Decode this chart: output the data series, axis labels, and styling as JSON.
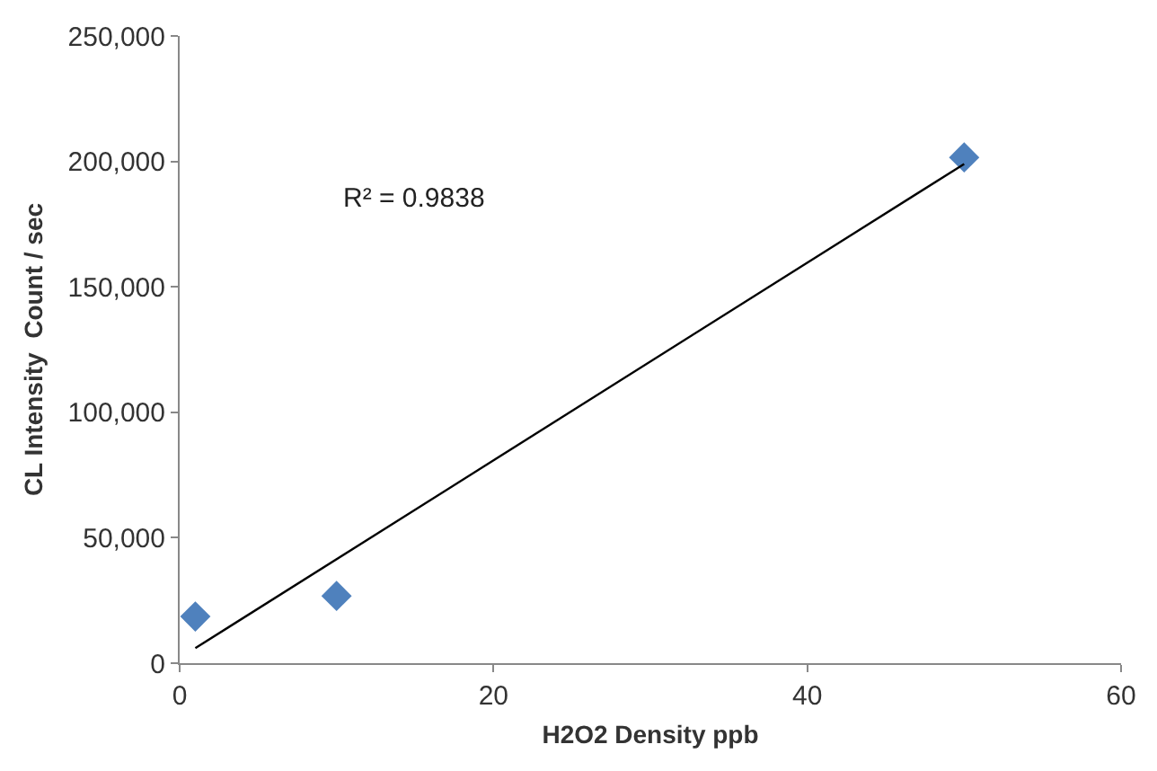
{
  "chart_data": {
    "type": "scatter",
    "xlabel": "H2O2 Density ppb",
    "ylabel": "CL Intensity  Count / sec",
    "x": [
      1,
      10,
      50
    ],
    "marker": "diamond",
    "grid": false,
    "series": [
      {
        "color": "#4f81bd",
        "values": [
          18600,
          26800,
          201600
        ]
      },
      {
        "type": "line",
        "color": "#000000",
        "x": [
          1,
          50
        ],
        "values": [
          6000,
          199000
        ],
        "marker": "none"
      }
    ],
    "annotations": [
      "R² = 0.9838"
    ],
    "xlim": [
      0,
      60
    ],
    "xticks": [
      0,
      20,
      40,
      60
    ],
    "ylim": [
      0,
      250000
    ],
    "yticks": [
      {
        "value": 0,
        "label": "0"
      },
      {
        "value": 50000,
        "label": "50,000"
      },
      {
        "value": 100000,
        "label": "100,000"
      },
      {
        "value": 150000,
        "label": "150,000"
      },
      {
        "value": 200000,
        "label": "200,000"
      },
      {
        "value": 250000,
        "label": "250,000"
      }
    ]
  }
}
